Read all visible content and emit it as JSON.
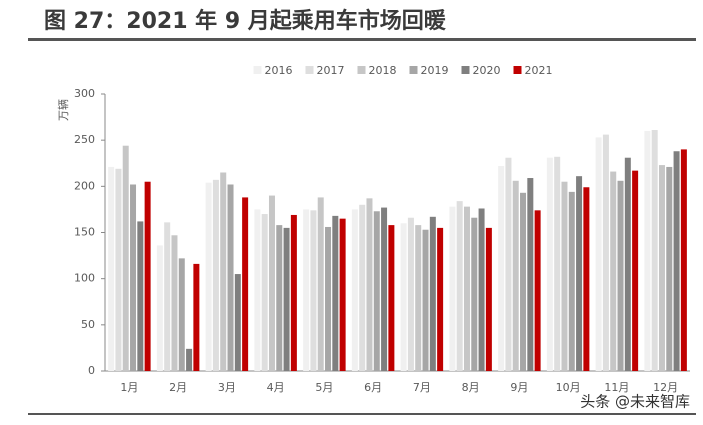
{
  "chart_data": {
    "type": "bar",
    "title": "图 27：2021 年 9 月起乘用车市场回暖",
    "y_label": "万辆",
    "categories": [
      "1月",
      "2月",
      "3月",
      "4月",
      "5月",
      "6月",
      "7月",
      "8月",
      "9月",
      "10月",
      "11月",
      "12月"
    ],
    "series": [
      {
        "name": "2016",
        "color": "#f0f0f0",
        "values": [
          221,
          136,
          204,
          175,
          175,
          175,
          160,
          178,
          222,
          231,
          253,
          260
        ]
      },
      {
        "name": "2017",
        "color": "#dedede",
        "values": [
          219,
          161,
          207,
          170,
          174,
          180,
          166,
          184,
          231,
          232,
          256,
          261
        ]
      },
      {
        "name": "2018",
        "color": "#c6c6c6",
        "values": [
          244,
          147,
          215,
          190,
          188,
          187,
          158,
          178,
          206,
          205,
          216,
          223
        ]
      },
      {
        "name": "2019",
        "color": "#a6a6a6",
        "values": [
          202,
          122,
          202,
          158,
          156,
          173,
          153,
          166,
          193,
          194,
          206,
          221
        ]
      },
      {
        "name": "2020",
        "color": "#7f7f7f",
        "values": [
          162,
          24,
          105,
          155,
          168,
          177,
          167,
          176,
          209,
          211,
          231,
          238
        ]
      },
      {
        "name": "2021",
        "color": "#c00000",
        "values": [
          205,
          116,
          188,
          169,
          165,
          158,
          155,
          155,
          174,
          199,
          217,
          240
        ]
      }
    ],
    "ylim": [
      0,
      300
    ],
    "yticks": [
      0,
      50,
      100,
      150,
      200,
      250,
      300
    ],
    "grid": false,
    "legend": "top"
  },
  "watermark": "头条 @未来智库"
}
